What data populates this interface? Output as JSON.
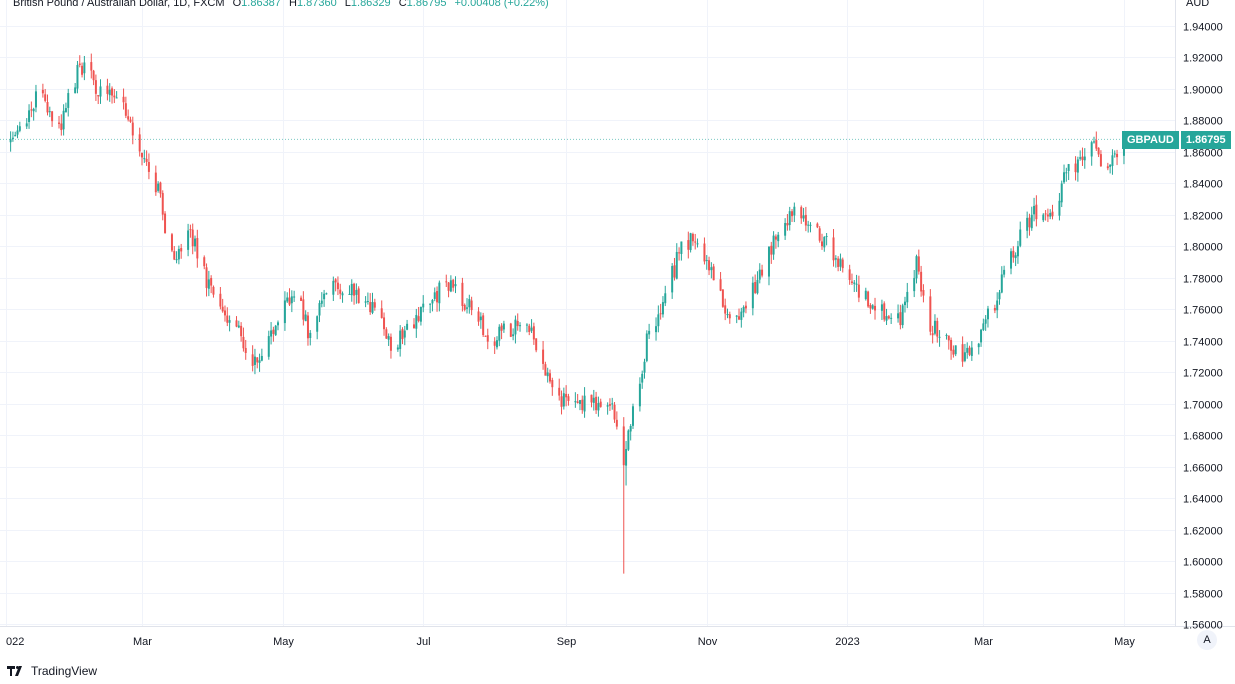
{
  "legend": {
    "symbol": "British Pound / Australian Dollar, 1D, FXCM",
    "open_label": "O",
    "open": "1.86387",
    "high_label": "H",
    "high": "1.87360",
    "low_label": "L",
    "low": "1.86329",
    "close_label": "C",
    "close": "1.86795",
    "change": "+0.00408 (+0.22%)"
  },
  "price_axis": {
    "unit": "AUD"
  },
  "last_price_badge": {
    "ticker": "GBPAUD",
    "price": "1.86795"
  },
  "auto_scale_label": "A",
  "brand": "TradingView",
  "colors": {
    "up": "#26a69a",
    "down": "#ef5350",
    "grid": "#f0f3fa",
    "text": "#131722"
  },
  "chart_data": {
    "type": "candlestick",
    "title": "British Pound / Australian Dollar, 1D, FXCM",
    "ylabel": "AUD",
    "ylim": [
      1.56,
      1.94
    ],
    "y_ticks": [
      "1.94000",
      "1.92000",
      "1.90000",
      "1.88000",
      "1.86000",
      "1.84000",
      "1.82000",
      "1.80000",
      "1.78000",
      "1.76000",
      "1.74000",
      "1.72000",
      "1.70000",
      "1.68000",
      "1.66000",
      "1.64000",
      "1.62000",
      "1.60000",
      "1.58000",
      "1.56000"
    ],
    "x_ticks": [
      "022",
      "Mar",
      "May",
      "Jul",
      "Sep",
      "Nov",
      "2023",
      "Mar",
      "May"
    ],
    "grid": true,
    "series": [
      {
        "values": [
          {
            "date": "2022-01-03",
            "close": 1.866
          },
          {
            "date": "2022-01-15",
            "close": 1.895
          },
          {
            "date": "2022-01-25",
            "close": 1.878
          },
          {
            "date": "2022-02-02",
            "close": 1.916
          },
          {
            "date": "2022-02-10",
            "close": 1.9
          },
          {
            "date": "2022-02-18",
            "close": 1.895
          },
          {
            "date": "2022-02-28",
            "close": 1.866
          },
          {
            "date": "2022-03-08",
            "close": 1.836
          },
          {
            "date": "2022-03-14",
            "close": 1.792
          },
          {
            "date": "2022-03-22",
            "close": 1.808
          },
          {
            "date": "2022-03-31",
            "close": 1.77
          },
          {
            "date": "2022-04-12",
            "close": 1.745
          },
          {
            "date": "2022-04-20",
            "close": 1.722
          },
          {
            "date": "2022-04-30",
            "close": 1.758
          },
          {
            "date": "2022-05-07",
            "close": 1.772
          },
          {
            "date": "2022-05-12",
            "close": 1.747
          },
          {
            "date": "2022-05-20",
            "close": 1.775
          },
          {
            "date": "2022-05-31",
            "close": 1.772
          },
          {
            "date": "2022-06-10",
            "close": 1.762
          },
          {
            "date": "2022-06-18",
            "close": 1.735
          },
          {
            "date": "2022-06-28",
            "close": 1.755
          },
          {
            "date": "2022-07-05",
            "close": 1.768
          },
          {
            "date": "2022-07-12",
            "close": 1.776
          },
          {
            "date": "2022-07-22",
            "close": 1.76
          },
          {
            "date": "2022-07-31",
            "close": 1.74
          },
          {
            "date": "2022-08-12",
            "close": 1.752
          },
          {
            "date": "2022-08-20",
            "close": 1.738
          },
          {
            "date": "2022-08-27",
            "close": 1.702
          },
          {
            "date": "2022-09-02",
            "close": 1.7
          },
          {
            "date": "2022-09-12",
            "close": 1.7
          },
          {
            "date": "2022-09-20",
            "close": 1.702
          },
          {
            "date": "2022-09-24",
            "close": 1.68
          },
          {
            "date": "2022-09-26",
            "close": 1.662
          },
          {
            "date": "2022-10-01",
            "close": 1.7
          },
          {
            "date": "2022-10-06",
            "close": 1.74
          },
          {
            "date": "2022-10-12",
            "close": 1.76
          },
          {
            "date": "2022-10-18",
            "close": 1.786
          },
          {
            "date": "2022-10-22",
            "close": 1.806
          },
          {
            "date": "2022-11-01",
            "close": 1.795
          },
          {
            "date": "2022-11-08",
            "close": 1.765
          },
          {
            "date": "2022-11-14",
            "close": 1.752
          },
          {
            "date": "2022-11-25",
            "close": 1.785
          },
          {
            "date": "2022-12-01",
            "close": 1.808
          },
          {
            "date": "2022-12-08",
            "close": 1.822
          },
          {
            "date": "2022-12-17",
            "close": 1.815
          },
          {
            "date": "2022-12-28",
            "close": 1.79
          },
          {
            "date": "2023-01-06",
            "close": 1.772
          },
          {
            "date": "2023-01-13",
            "close": 1.76
          },
          {
            "date": "2023-01-24",
            "close": 1.752
          },
          {
            "date": "2023-01-31",
            "close": 1.79
          },
          {
            "date": "2023-02-06",
            "close": 1.75
          },
          {
            "date": "2023-02-14",
            "close": 1.738
          },
          {
            "date": "2023-02-20",
            "close": 1.732
          },
          {
            "date": "2023-02-28",
            "close": 1.745
          },
          {
            "date": "2023-03-06",
            "close": 1.765
          },
          {
            "date": "2023-03-12",
            "close": 1.79
          },
          {
            "date": "2023-03-18",
            "close": 1.81
          },
          {
            "date": "2023-03-24",
            "close": 1.823
          },
          {
            "date": "2023-03-31",
            "close": 1.822
          },
          {
            "date": "2023-04-06",
            "close": 1.845
          },
          {
            "date": "2023-04-12",
            "close": 1.855
          },
          {
            "date": "2023-04-18",
            "close": 1.865
          },
          {
            "date": "2023-04-22",
            "close": 1.845
          },
          {
            "date": "2023-04-28",
            "close": 1.858
          },
          {
            "date": "2023-05-01",
            "close": 1.868
          }
        ]
      }
    ]
  }
}
